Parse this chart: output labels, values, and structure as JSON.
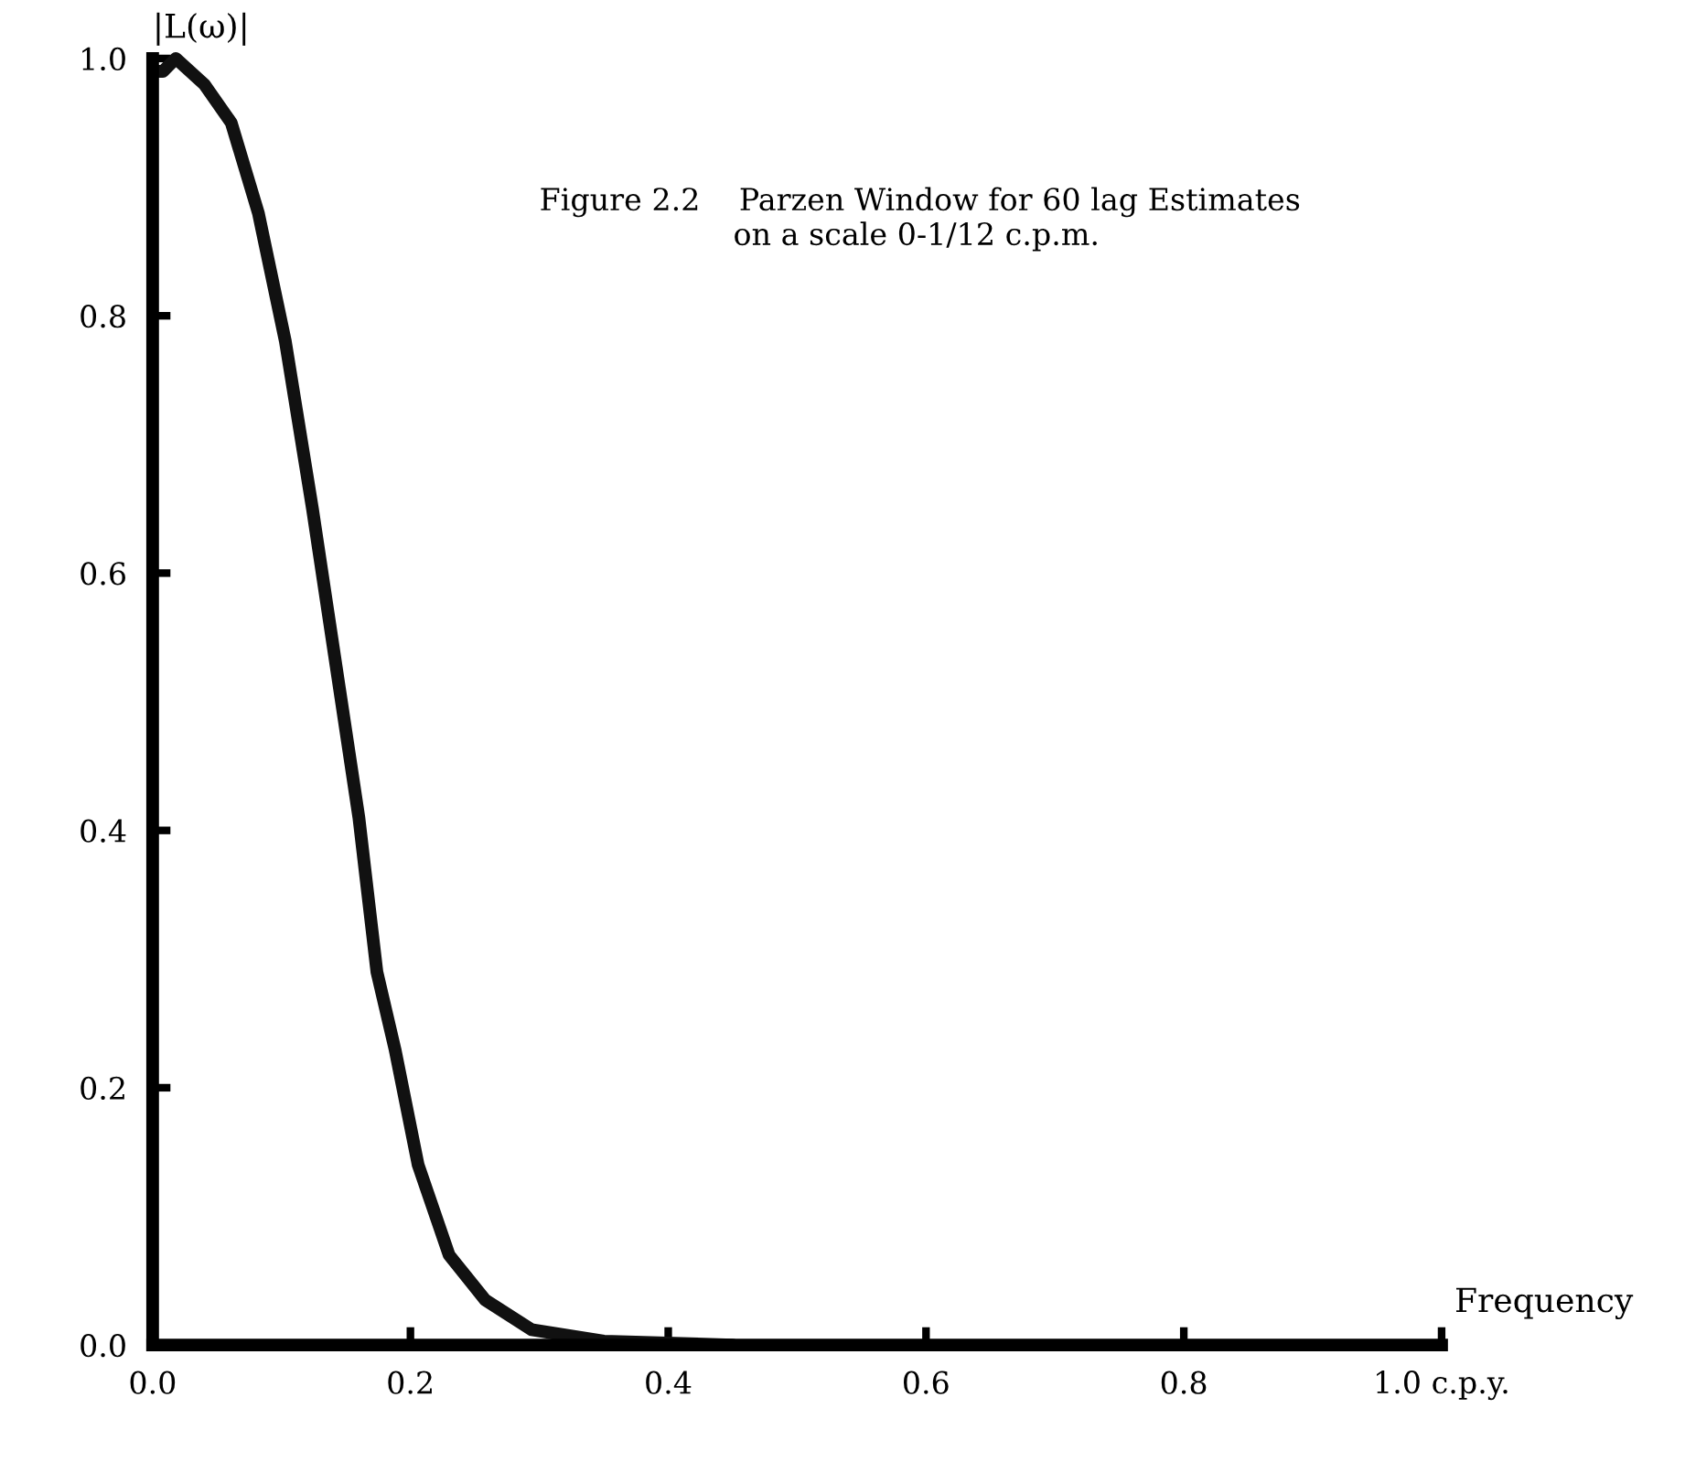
{
  "chart_data": {
    "type": "line",
    "title": "Figure 2.2    Parzen Window for 60 lag Estimates\n                    on a scale 0-1/12 c.p.m.",
    "ylabel": "|L(ω)|",
    "xlabel": "Frequency",
    "x": [
      0,
      0.008,
      0.018,
      0.04,
      0.061,
      0.082,
      0.103,
      0.124,
      0.145,
      0.16,
      0.174,
      0.188,
      0.206,
      0.23,
      0.258,
      0.294,
      0.35,
      0.45
    ],
    "series": [
      {
        "color": "#111111",
        "values": [
          0.99,
          0.99,
          1.0,
          0.98,
          0.95,
          0.88,
          0.78,
          0.65,
          0.51,
          0.41,
          0.29,
          0.23,
          0.14,
          0.07,
          0.035,
          0.012,
          0.003,
          0
        ]
      }
    ],
    "xlim": [
      0,
      1.0
    ],
    "ylim": [
      0,
      1.0
    ],
    "xticks": [
      {
        "value": 0,
        "label": "0.0"
      },
      0.2,
      0.4,
      0.6,
      0.8,
      {
        "value": 1.0,
        "label": "1.0 c.p.y."
      }
    ],
    "yticks": [
      {
        "value": 0,
        "label": "0.0"
      },
      0.2,
      0.4,
      0.6,
      0.8,
      {
        "value": 1,
        "label": "1.0"
      }
    ],
    "grid": false,
    "legend": false,
    "marker": "none",
    "line_style": "solid"
  }
}
